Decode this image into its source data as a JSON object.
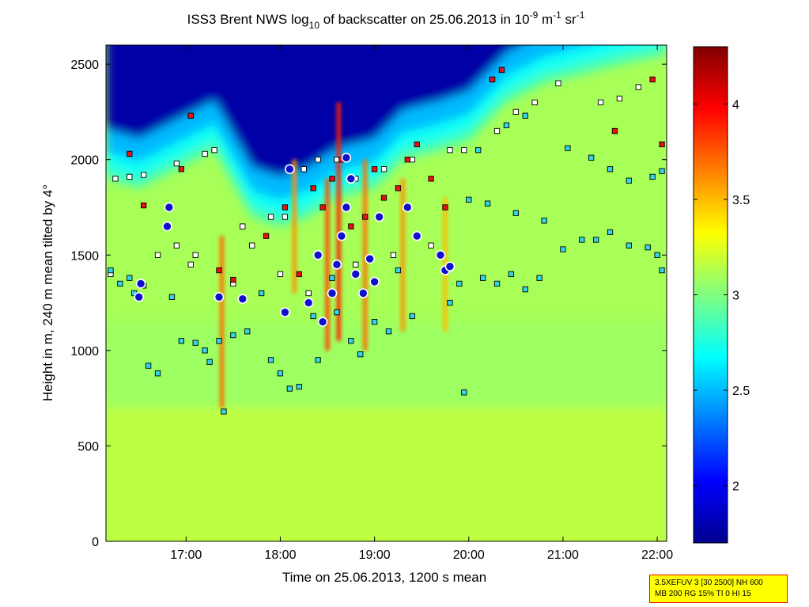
{
  "chart_data": {
    "type": "heatmap",
    "title": {
      "prefix": "ISS3 Brent NWS log",
      "sub": "10",
      "mid": " of backscatter on 25.06.2013 in 10",
      "sup1": "-9",
      "unit1": " m",
      "sup2": "-1",
      "unit2": " sr",
      "sup3": "-1"
    },
    "xlabel": "Time on 25.06.2013, 1200 s mean",
    "ylabel": "Height in m, 240 m mean tilted by 4°",
    "x_range_hours": [
      16.15,
      22.1
    ],
    "x_ticks": [
      {
        "value": 17,
        "label": "17:00"
      },
      {
        "value": 18,
        "label": "18:00"
      },
      {
        "value": 19,
        "label": "19:00"
      },
      {
        "value": 20,
        "label": "20:00"
      },
      {
        "value": 21,
        "label": "21:00"
      },
      {
        "value": 22,
        "label": "22:00"
      }
    ],
    "y_range": [
      0,
      2600
    ],
    "y_ticks": [
      {
        "value": 0,
        "label": "0"
      },
      {
        "value": 500,
        "label": "500"
      },
      {
        "value": 1000,
        "label": "1000"
      },
      {
        "value": 1500,
        "label": "1500"
      },
      {
        "value": 2000,
        "label": "2000"
      },
      {
        "value": 2500,
        "label": "2500"
      }
    ],
    "colorbar": {
      "range": [
        1.7,
        4.3
      ],
      "ticks": [
        {
          "value": 2,
          "label": "2"
        },
        {
          "value": 2.5,
          "label": "2.5"
        },
        {
          "value": 3,
          "label": "3"
        },
        {
          "value": 3.5,
          "label": "3.5"
        },
        {
          "value": 4,
          "label": "4"
        }
      ]
    },
    "background_level": 3.1,
    "clear_air_top_level": 1.8,
    "cloud_base_profile": [
      {
        "t": 16.15,
        "h": 1900
      },
      {
        "t": 16.5,
        "h": 1850
      },
      {
        "t": 16.9,
        "h": 1950
      },
      {
        "t": 17.3,
        "h": 2050
      },
      {
        "t": 17.7,
        "h": 1700
      },
      {
        "t": 18.0,
        "h": 1650
      },
      {
        "t": 18.3,
        "h": 1700
      },
      {
        "t": 18.6,
        "h": 1800
      },
      {
        "t": 19.0,
        "h": 1850
      },
      {
        "t": 19.3,
        "h": 2000
      },
      {
        "t": 19.7,
        "h": 2050
      },
      {
        "t": 20.0,
        "h": 2100
      },
      {
        "t": 20.4,
        "h": 2300
      },
      {
        "t": 20.8,
        "h": 2400
      },
      {
        "t": 21.2,
        "h": 2450
      },
      {
        "t": 21.6,
        "h": 2500
      },
      {
        "t": 22.1,
        "h": 2550
      }
    ],
    "plumes": [
      {
        "t": 17.38,
        "h0": 700,
        "h1": 1600,
        "level": 3.7
      },
      {
        "t": 18.15,
        "h0": 1300,
        "h1": 2000,
        "level": 3.6
      },
      {
        "t": 18.5,
        "h0": 1000,
        "h1": 1900,
        "level": 3.8
      },
      {
        "t": 18.62,
        "h0": 1050,
        "h1": 2300,
        "level": 3.9
      },
      {
        "t": 18.9,
        "h0": 1000,
        "h1": 2000,
        "level": 3.7
      },
      {
        "t": 19.3,
        "h0": 1100,
        "h1": 1900,
        "level": 3.6
      },
      {
        "t": 19.75,
        "h0": 1100,
        "h1": 1800,
        "level": 3.5
      }
    ],
    "series": [
      {
        "name": "layer detections (white)",
        "marker": "square",
        "color": "#ffffff",
        "points": [
          {
            "t": 16.25,
            "h": 1900
          },
          {
            "t": 16.4,
            "h": 1910
          },
          {
            "t": 16.55,
            "h": 1920
          },
          {
            "t": 16.9,
            "h": 1980
          },
          {
            "t": 17.2,
            "h": 2030
          },
          {
            "t": 17.3,
            "h": 2050
          },
          {
            "t": 16.7,
            "h": 1500
          },
          {
            "t": 16.9,
            "h": 1550
          },
          {
            "t": 17.1,
            "h": 1500
          },
          {
            "t": 17.6,
            "h": 1650
          },
          {
            "t": 17.9,
            "h": 1700
          },
          {
            "t": 18.05,
            "h": 1700
          },
          {
            "t": 18.25,
            "h": 1950
          },
          {
            "t": 18.4,
            "h": 2000
          },
          {
            "t": 18.6,
            "h": 2000
          },
          {
            "t": 18.8,
            "h": 1900
          },
          {
            "t": 19.1,
            "h": 1950
          },
          {
            "t": 19.4,
            "h": 2000
          },
          {
            "t": 19.8,
            "h": 2050
          },
          {
            "t": 19.95,
            "h": 2050
          },
          {
            "t": 20.3,
            "h": 2150
          },
          {
            "t": 20.5,
            "h": 2250
          },
          {
            "t": 20.7,
            "h": 2300
          },
          {
            "t": 20.95,
            "h": 2400
          },
          {
            "t": 21.4,
            "h": 2300
          },
          {
            "t": 21.6,
            "h": 2320
          },
          {
            "t": 21.8,
            "h": 2380
          },
          {
            "t": 17.7,
            "h": 1550
          },
          {
            "t": 18.0,
            "h": 1400
          },
          {
            "t": 18.3,
            "h": 1300
          },
          {
            "t": 18.8,
            "h": 1450
          },
          {
            "t": 19.2,
            "h": 1500
          },
          {
            "t": 19.6,
            "h": 1550
          },
          {
            "t": 16.2,
            "h": 1400
          },
          {
            "t": 17.05,
            "h": 1450
          },
          {
            "t": 17.5,
            "h": 1350
          }
        ]
      },
      {
        "name": "layer detections (cyan)",
        "marker": "square",
        "color": "#33d6e6",
        "points": [
          {
            "t": 16.2,
            "h": 1420
          },
          {
            "t": 16.3,
            "h": 1350
          },
          {
            "t": 16.4,
            "h": 1380
          },
          {
            "t": 16.55,
            "h": 1340
          },
          {
            "t": 16.85,
            "h": 1280
          },
          {
            "t": 16.95,
            "h": 1050
          },
          {
            "t": 17.1,
            "h": 1040
          },
          {
            "t": 17.2,
            "h": 1000
          },
          {
            "t": 17.25,
            "h": 940
          },
          {
            "t": 16.6,
            "h": 920
          },
          {
            "t": 16.7,
            "h": 880
          },
          {
            "t": 17.35,
            "h": 1050
          },
          {
            "t": 17.5,
            "h": 1080
          },
          {
            "t": 17.65,
            "h": 1100
          },
          {
            "t": 17.9,
            "h": 950
          },
          {
            "t": 18.0,
            "h": 880
          },
          {
            "t": 18.1,
            "h": 800
          },
          {
            "t": 18.2,
            "h": 810
          },
          {
            "t": 18.4,
            "h": 950
          },
          {
            "t": 18.6,
            "h": 1200
          },
          {
            "t": 18.75,
            "h": 1050
          },
          {
            "t": 18.85,
            "h": 980
          },
          {
            "t": 19.0,
            "h": 1150
          },
          {
            "t": 19.15,
            "h": 1100
          },
          {
            "t": 19.4,
            "h": 1180
          },
          {
            "t": 19.8,
            "h": 1250
          },
          {
            "t": 19.9,
            "h": 1350
          },
          {
            "t": 20.15,
            "h": 1380
          },
          {
            "t": 20.3,
            "h": 1350
          },
          {
            "t": 20.45,
            "h": 1400
          },
          {
            "t": 20.6,
            "h": 1320
          },
          {
            "t": 20.75,
            "h": 1380
          },
          {
            "t": 21.35,
            "h": 1580
          },
          {
            "t": 21.5,
            "h": 1620
          },
          {
            "t": 21.7,
            "h": 1550
          },
          {
            "t": 21.9,
            "h": 1540
          },
          {
            "t": 22.0,
            "h": 1500
          },
          {
            "t": 22.05,
            "h": 1420
          },
          {
            "t": 20.0,
            "h": 1790
          },
          {
            "t": 20.2,
            "h": 1770
          },
          {
            "t": 20.5,
            "h": 1720
          },
          {
            "t": 20.8,
            "h": 1680
          },
          {
            "t": 21.0,
            "h": 1530
          },
          {
            "t": 21.2,
            "h": 1580
          },
          {
            "t": 21.05,
            "h": 2060
          },
          {
            "t": 21.3,
            "h": 2010
          },
          {
            "t": 21.5,
            "h": 1950
          },
          {
            "t": 21.7,
            "h": 1890
          },
          {
            "t": 21.95,
            "h": 1910
          },
          {
            "t": 22.05,
            "h": 1940
          },
          {
            "t": 20.1,
            "h": 2050
          },
          {
            "t": 20.4,
            "h": 2180
          },
          {
            "t": 20.6,
            "h": 2230
          },
          {
            "t": 19.95,
            "h": 780
          },
          {
            "t": 18.35,
            "h": 1180
          },
          {
            "t": 18.55,
            "h": 1380
          },
          {
            "t": 19.25,
            "h": 1420
          },
          {
            "t": 17.8,
            "h": 1300
          },
          {
            "t": 17.4,
            "h": 680
          },
          {
            "t": 16.45,
            "h": 1300
          }
        ]
      },
      {
        "name": "red detections",
        "marker": "square",
        "color": "#ee1010",
        "points": [
          {
            "t": 16.4,
            "h": 2030
          },
          {
            "t": 16.55,
            "h": 1760
          },
          {
            "t": 16.95,
            "h": 1950
          },
          {
            "t": 17.05,
            "h": 2230
          },
          {
            "t": 17.35,
            "h": 1420
          },
          {
            "t": 17.85,
            "h": 1600
          },
          {
            "t": 18.05,
            "h": 1750
          },
          {
            "t": 18.2,
            "h": 1400
          },
          {
            "t": 18.35,
            "h": 1850
          },
          {
            "t": 18.45,
            "h": 1750
          },
          {
            "t": 18.55,
            "h": 1900
          },
          {
            "t": 18.65,
            "h": 2000
          },
          {
            "t": 18.75,
            "h": 1650
          },
          {
            "t": 18.9,
            "h": 1700
          },
          {
            "t": 19.0,
            "h": 1950
          },
          {
            "t": 19.1,
            "h": 1800
          },
          {
            "t": 19.25,
            "h": 1850
          },
          {
            "t": 19.35,
            "h": 2000
          },
          {
            "t": 19.45,
            "h": 2080
          },
          {
            "t": 19.6,
            "h": 1900
          },
          {
            "t": 19.75,
            "h": 1750
          },
          {
            "t": 20.25,
            "h": 2420
          },
          {
            "t": 20.35,
            "h": 2470
          },
          {
            "t": 21.55,
            "h": 2150
          },
          {
            "t": 21.95,
            "h": 2420
          },
          {
            "t": 22.05,
            "h": 2080
          },
          {
            "t": 17.5,
            "h": 1370
          }
        ]
      },
      {
        "name": "strong echoes (circles)",
        "marker": "circle",
        "color": "#1010cc",
        "points": [
          {
            "t": 16.5,
            "h": 1280
          },
          {
            "t": 16.52,
            "h": 1350
          },
          {
            "t": 16.8,
            "h": 1650
          },
          {
            "t": 16.82,
            "h": 1750
          },
          {
            "t": 17.35,
            "h": 1280
          },
          {
            "t": 17.6,
            "h": 1270
          },
          {
            "t": 18.05,
            "h": 1200
          },
          {
            "t": 18.1,
            "h": 1950
          },
          {
            "t": 18.3,
            "h": 1250
          },
          {
            "t": 18.4,
            "h": 1500
          },
          {
            "t": 18.55,
            "h": 1300
          },
          {
            "t": 18.6,
            "h": 1450
          },
          {
            "t": 18.65,
            "h": 1600
          },
          {
            "t": 18.7,
            "h": 1750
          },
          {
            "t": 18.75,
            "h": 1900
          },
          {
            "t": 18.8,
            "h": 1400
          },
          {
            "t": 18.88,
            "h": 1300
          },
          {
            "t": 18.95,
            "h": 1480
          },
          {
            "t": 19.0,
            "h": 1360
          },
          {
            "t": 19.05,
            "h": 1700
          },
          {
            "t": 19.35,
            "h": 1750
          },
          {
            "t": 19.45,
            "h": 1600
          },
          {
            "t": 19.7,
            "h": 1500
          },
          {
            "t": 19.75,
            "h": 1420
          },
          {
            "t": 19.8,
            "h": 1440
          },
          {
            "t": 18.7,
            "h": 2010
          },
          {
            "t": 18.45,
            "h": 1150
          }
        ]
      }
    ],
    "info_box": {
      "line1": "3.5XEFUV 3 [30 2500] NH 600",
      "line2": "MB 200 RG 15% TI 0 HI 15"
    }
  }
}
